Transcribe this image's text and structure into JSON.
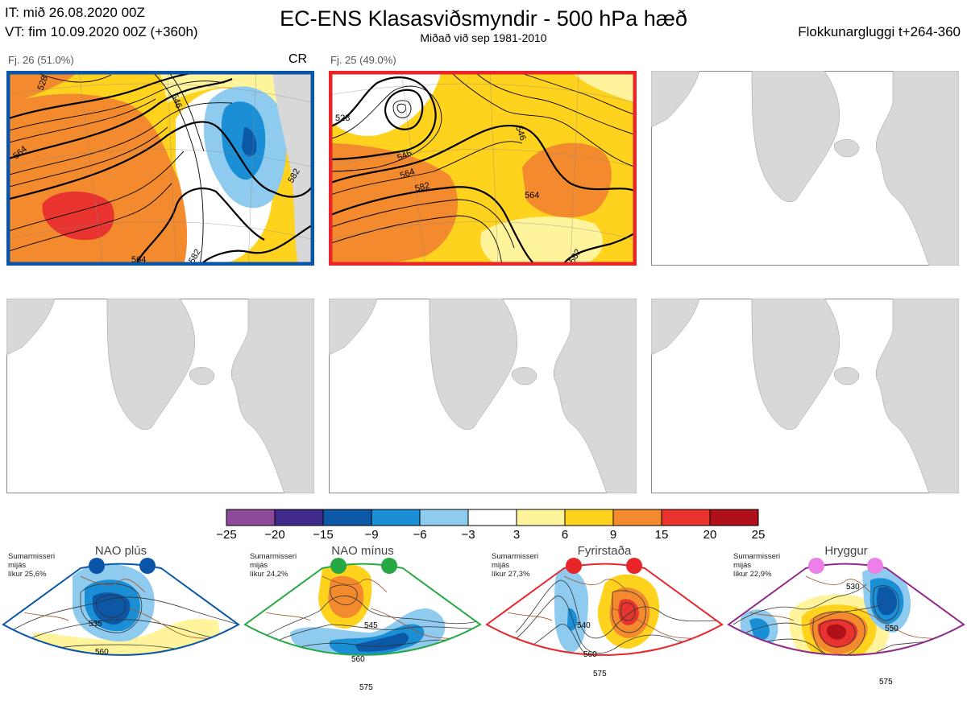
{
  "header": {
    "it_line": "IT: mið 26.08.2020 00Z",
    "vt_line": "VT: fim 10.09.2020 00Z  (+360h)",
    "title": "EC-ENS Klasasviðsmyndir - 500 hPa hæð",
    "subtitle": "Miðað við sep 1981-2010",
    "window": "Flokkunargluggi t+264-360"
  },
  "clusters": [
    {
      "label": "Fj. 26 (51.0%)",
      "tag": "CR",
      "border_color": "#0a55a8",
      "contours": [
        "546",
        "564",
        "582",
        "564",
        "582",
        "528"
      ]
    },
    {
      "label": "Fj. 25 (49.0%)",
      "tag": "",
      "border_color": "#e8262a",
      "contours": [
        "528",
        "546",
        "564",
        "582",
        "546",
        "564",
        "582"
      ]
    }
  ],
  "colorbar": {
    "ticks": [
      "−25",
      "−20",
      "−15",
      "−9",
      "−6",
      "−3",
      "3",
      "6",
      "9",
      "15",
      "20",
      "25"
    ],
    "colors": [
      "#8e4a9a",
      "#3f2a8c",
      "#0c57a6",
      "#1a8fd6",
      "#8ecbef",
      "#ffffff",
      "#fff49c",
      "#ffd21e",
      "#f38a2e",
      "#e8332f",
      "#b0101a"
    ]
  },
  "regimes": [
    {
      "name": "NAO plús",
      "info": [
        "Sumarmisseri",
        "mijás",
        "líkur 25,6%"
      ],
      "color": "#0a55a8",
      "contours": [
        "535",
        "560"
      ]
    },
    {
      "name": "NAO mínus",
      "info": [
        "Sumarmisseri",
        "mijás",
        "líkur 24,2%"
      ],
      "color": "#27a845",
      "contours": [
        "545",
        "560",
        "575"
      ]
    },
    {
      "name": "Fyrirstaða",
      "info": [
        "Sumarmisseri",
        "mijás",
        "líkur 27,3%"
      ],
      "color": "#e8262a",
      "contours": [
        "540",
        "560",
        "575"
      ]
    },
    {
      "name": "Hryggur",
      "info": [
        "Sumarmisseri",
        "mijás",
        "líkur 22,9%"
      ],
      "color": "#8e2a8a",
      "dot_color": "#ee7ee8",
      "contours": [
        "530",
        "550",
        "575"
      ]
    }
  ]
}
